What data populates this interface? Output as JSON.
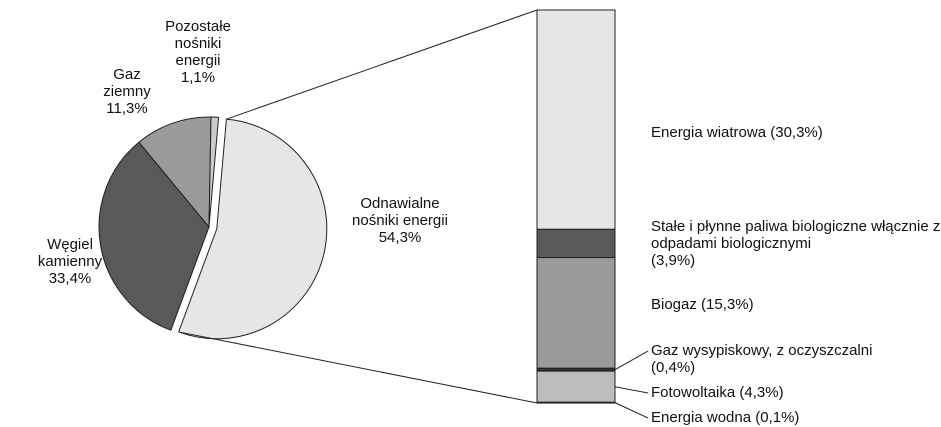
{
  "chart_data": [
    {
      "type": "pie",
      "categories": [
        "Odnawialne nośniki energii",
        "Węgiel kamienny",
        "Gaz ziemny",
        "Pozostałe nośniki energii"
      ],
      "values": [
        54.3,
        33.4,
        11.3,
        1.1
      ],
      "value_labels": [
        "54,3%",
        "33,4%",
        "11,3%",
        "1,1%"
      ],
      "colors": [
        "#e6e6e6",
        "#595959",
        "#9a9a9a",
        "#cccccc"
      ]
    },
    {
      "type": "stacked-bar",
      "categories": [
        "Energia wiatrowa",
        "Stałe i płynne paliwa biologiczne włącznie z odpadami biologicznymi",
        "Biogaz",
        "Gaz wysypiskowy, z oczyszczalni",
        "Fotowoltaika",
        "Energia wodna"
      ],
      "values": [
        30.3,
        3.9,
        15.3,
        0.4,
        4.3,
        0.1
      ],
      "value_labels": [
        "(30,3%)",
        "(3,9%)",
        "(15,3%)",
        "(0,4%)",
        "(4,3%)",
        "(0,1%)"
      ],
      "colors": [
        "#e6e6e6",
        "#595959",
        "#9a9a9a",
        "#333333",
        "#bdbdbd",
        "#333333"
      ]
    }
  ]
}
